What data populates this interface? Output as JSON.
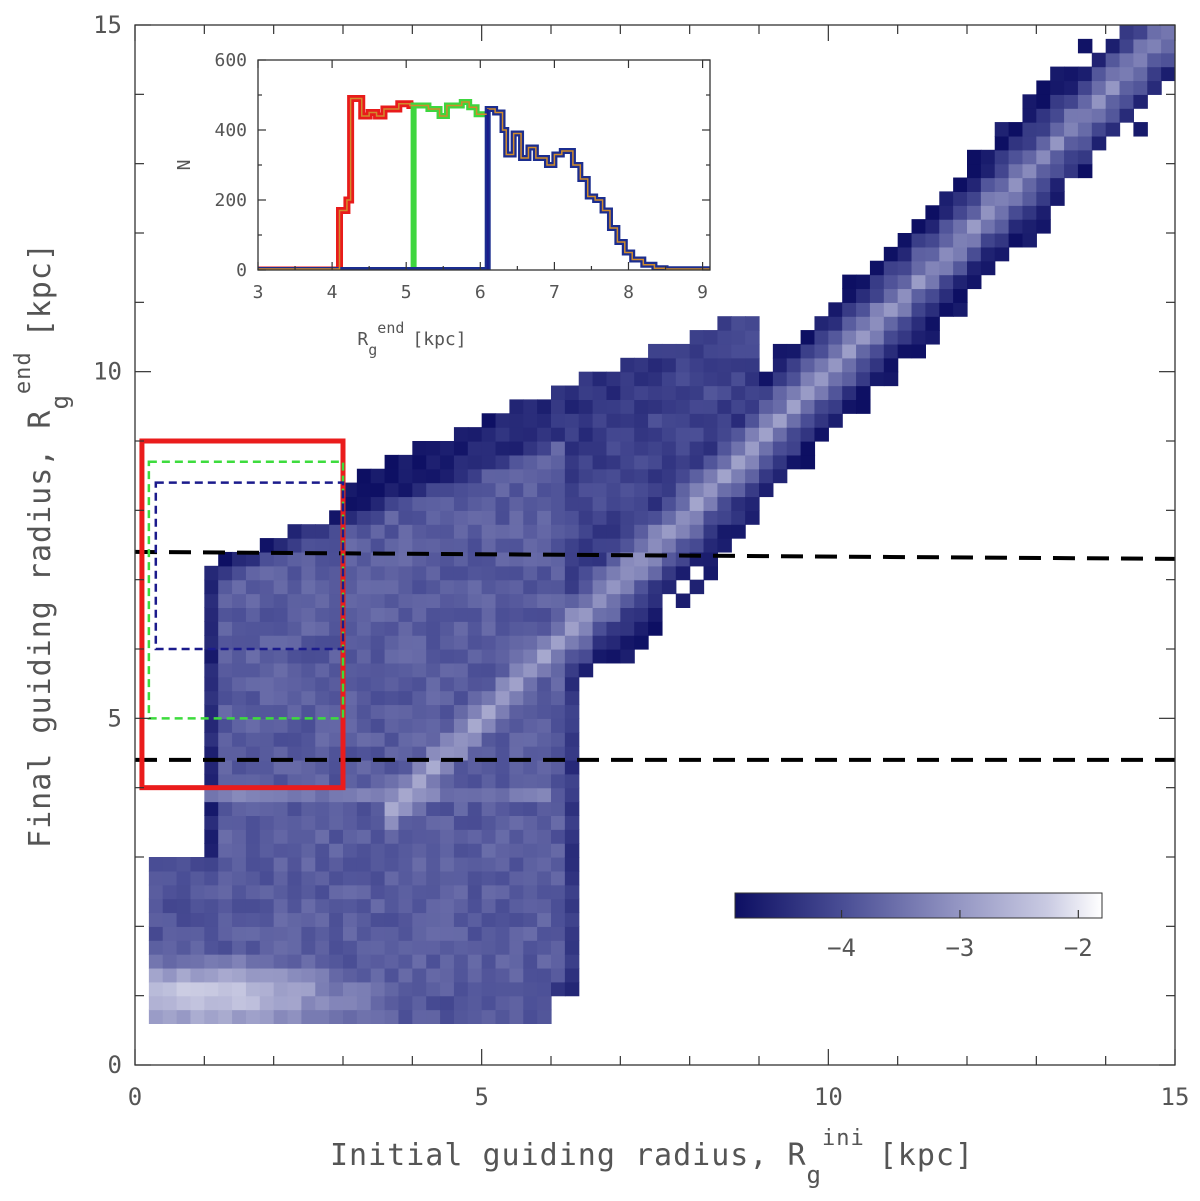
{
  "chart_data": [
    {
      "type": "heatmap",
      "xlabel": "Initial guiding radius, R",
      "xlabel_sub": "g",
      "xlabel_sup": "ini",
      "xlabel_unit": "[kpc]",
      "ylabel": "Final guiding radius, R",
      "ylabel_sub": "g",
      "ylabel_sup": "end",
      "ylabel_unit": "[kpc]",
      "xlim": [
        0,
        15
      ],
      "ylim": [
        0,
        15
      ],
      "x_ticks_major": [
        0,
        5,
        10,
        15
      ],
      "y_ticks_major": [
        0,
        5,
        10,
        15
      ],
      "x_minor_step": 1,
      "y_minor_step": 1,
      "colormap": [
        "#0d0f63",
        "#4b4f96",
        "#9294c2",
        "#c9cae2",
        "#ffffff"
      ],
      "colorbar": {
        "ticks": [
          -4,
          -3,
          -2
        ],
        "range": [
          -4.9,
          -1.8
        ],
        "labels": [
          "−4",
          "−3",
          "−2"
        ]
      },
      "bins": 0.2,
      "structure": {
        "diagonal": {
          "from": [
            4.2,
            4.2
          ],
          "to": [
            15,
            15
          ],
          "width": 0.9
        },
        "bar_region": {
          "x_range": [
            1.0,
            6.5
          ],
          "y_range": [
            1.0,
            8.0
          ]
        },
        "peak": [
          1.0,
          1.0
        ]
      },
      "horizontal_lines": [
        {
          "y_start": 7.4,
          "y_end": 7.3,
          "color": "#000000",
          "style": "dashed"
        },
        {
          "y_start": 4.4,
          "y_end": 4.4,
          "color": "#000000",
          "style": "dashed"
        }
      ],
      "selection_boxes": [
        {
          "x": [
            0.1,
            3.0
          ],
          "y": [
            4.0,
            9.0
          ],
          "color": "#ea1c1c",
          "style": "solid"
        },
        {
          "x": [
            0.2,
            3.0
          ],
          "y": [
            5.0,
            8.7
          ],
          "color": "#3ddc3d",
          "style": "dashed"
        },
        {
          "x": [
            0.3,
            3.0
          ],
          "y": [
            6.0,
            8.4
          ],
          "color": "#1b1b8c",
          "style": "dashed"
        }
      ]
    },
    {
      "type": "line",
      "title": "",
      "xlabel": "R",
      "xlabel_sub": "g",
      "xlabel_sup": "end",
      "xlabel_unit": "[kpc]",
      "ylabel": "N",
      "xlim": [
        3,
        9.1
      ],
      "ylim": [
        0,
        600
      ],
      "x_ticks": [
        3,
        4,
        5,
        6,
        7,
        8,
        9
      ],
      "y_ticks": [
        0,
        200,
        400,
        600
      ],
      "series": [
        {
          "color": "#e81b1b",
          "width": 7,
          "points": [
            [
              3.0,
              0
            ],
            [
              4.1,
              0
            ],
            [
              4.1,
              170
            ],
            [
              4.2,
              170
            ],
            [
              4.2,
              200
            ],
            [
              4.25,
              200
            ],
            [
              4.25,
              490
            ],
            [
              4.4,
              490
            ],
            [
              4.4,
              440
            ],
            [
              4.5,
              440
            ],
            [
              4.5,
              450
            ],
            [
              4.6,
              450
            ],
            [
              4.6,
              440
            ],
            [
              4.7,
              440
            ],
            [
              4.7,
              460
            ],
            [
              4.9,
              460
            ],
            [
              4.9,
              475
            ],
            [
              5.05,
              475
            ],
            [
              5.05,
              470
            ],
            [
              5.1,
              470
            ]
          ]
        },
        {
          "color": "#3ed63e",
          "width": 6,
          "points": [
            [
              3.0,
              0
            ],
            [
              5.1,
              0
            ],
            [
              5.1,
              470
            ],
            [
              5.3,
              470
            ],
            [
              5.3,
              460
            ],
            [
              5.45,
              460
            ],
            [
              5.45,
              440
            ],
            [
              5.55,
              440
            ],
            [
              5.55,
              470
            ],
            [
              5.75,
              470
            ],
            [
              5.75,
              480
            ],
            [
              5.85,
              480
            ],
            [
              5.85,
              465
            ],
            [
              5.95,
              465
            ],
            [
              5.95,
              445
            ],
            [
              6.1,
              445
            ]
          ]
        },
        {
          "color": "#1b2d8f",
          "width": 6,
          "points": [
            [
              3.0,
              0
            ],
            [
              6.1,
              0
            ],
            [
              6.1,
              460
            ],
            [
              6.2,
              460
            ],
            [
              6.2,
              450
            ],
            [
              6.3,
              450
            ],
            [
              6.3,
              400
            ],
            [
              6.35,
              400
            ],
            [
              6.35,
              330
            ],
            [
              6.45,
              330
            ],
            [
              6.45,
              390
            ],
            [
              6.55,
              390
            ],
            [
              6.55,
              320
            ],
            [
              6.65,
              320
            ],
            [
              6.65,
              350
            ],
            [
              6.75,
              350
            ],
            [
              6.75,
              320
            ],
            [
              6.9,
              320
            ],
            [
              6.9,
              300
            ],
            [
              7.0,
              300
            ],
            [
              7.0,
              330
            ],
            [
              7.1,
              330
            ],
            [
              7.1,
              340
            ],
            [
              7.25,
              340
            ],
            [
              7.25,
              300
            ],
            [
              7.35,
              300
            ],
            [
              7.35,
              260
            ],
            [
              7.45,
              260
            ],
            [
              7.45,
              210
            ],
            [
              7.55,
              210
            ],
            [
              7.55,
              200
            ],
            [
              7.65,
              200
            ],
            [
              7.65,
              170
            ],
            [
              7.75,
              170
            ],
            [
              7.75,
              120
            ],
            [
              7.85,
              120
            ],
            [
              7.85,
              80
            ],
            [
              7.95,
              80
            ],
            [
              7.95,
              50
            ],
            [
              8.05,
              50
            ],
            [
              8.05,
              30
            ],
            [
              8.2,
              30
            ],
            [
              8.2,
              15
            ],
            [
              8.35,
              15
            ],
            [
              8.35,
              5
            ],
            [
              8.5,
              5
            ],
            [
              8.5,
              2
            ],
            [
              9.1,
              2
            ]
          ]
        },
        {
          "color": "#d08b2c",
          "width": 1.5,
          "points": [
            [
              3.0,
              3
            ],
            [
              4.1,
              3
            ],
            [
              4.1,
              170
            ],
            [
              4.2,
              170
            ],
            [
              4.2,
              200
            ],
            [
              4.25,
              200
            ],
            [
              4.25,
              490
            ],
            [
              4.4,
              490
            ],
            [
              4.4,
              440
            ],
            [
              4.5,
              440
            ],
            [
              4.5,
              450
            ],
            [
              4.6,
              450
            ],
            [
              4.6,
              440
            ],
            [
              4.7,
              440
            ],
            [
              4.7,
              460
            ],
            [
              4.9,
              460
            ],
            [
              4.9,
              475
            ],
            [
              5.05,
              475
            ],
            [
              5.05,
              470
            ],
            [
              5.3,
              470
            ],
            [
              5.3,
              460
            ],
            [
              5.45,
              460
            ],
            [
              5.45,
              440
            ],
            [
              5.55,
              440
            ],
            [
              5.55,
              470
            ],
            [
              5.75,
              470
            ],
            [
              5.75,
              480
            ],
            [
              5.85,
              480
            ],
            [
              5.85,
              465
            ],
            [
              5.95,
              465
            ],
            [
              5.95,
              445
            ],
            [
              6.1,
              445
            ],
            [
              6.1,
              460
            ],
            [
              6.2,
              460
            ],
            [
              6.2,
              450
            ],
            [
              6.3,
              450
            ],
            [
              6.3,
              400
            ],
            [
              6.35,
              400
            ],
            [
              6.35,
              330
            ],
            [
              6.45,
              330
            ],
            [
              6.45,
              390
            ],
            [
              6.55,
              390
            ],
            [
              6.55,
              320
            ],
            [
              6.65,
              320
            ],
            [
              6.65,
              350
            ],
            [
              6.75,
              350
            ],
            [
              6.75,
              320
            ],
            [
              6.9,
              320
            ],
            [
              6.9,
              300
            ],
            [
              7.0,
              300
            ],
            [
              7.0,
              330
            ],
            [
              7.1,
              330
            ],
            [
              7.1,
              340
            ],
            [
              7.25,
              340
            ],
            [
              7.25,
              300
            ],
            [
              7.35,
              300
            ],
            [
              7.35,
              260
            ],
            [
              7.45,
              260
            ],
            [
              7.45,
              210
            ],
            [
              7.55,
              210
            ],
            [
              7.55,
              200
            ],
            [
              7.65,
              200
            ],
            [
              7.65,
              170
            ],
            [
              7.75,
              170
            ],
            [
              7.75,
              120
            ],
            [
              7.85,
              120
            ],
            [
              7.85,
              80
            ],
            [
              7.95,
              80
            ],
            [
              7.95,
              50
            ],
            [
              8.05,
              50
            ],
            [
              8.05,
              30
            ],
            [
              8.2,
              30
            ],
            [
              8.2,
              15
            ],
            [
              8.35,
              15
            ],
            [
              8.35,
              5
            ],
            [
              8.5,
              5
            ],
            [
              8.5,
              3
            ],
            [
              9.1,
              3
            ]
          ]
        },
        {
          "color": "#1b1b8c",
          "width": 2,
          "style": "vline",
          "points": [
            [
              6.1,
              0
            ],
            [
              6.1,
              460
            ]
          ]
        }
      ]
    }
  ]
}
